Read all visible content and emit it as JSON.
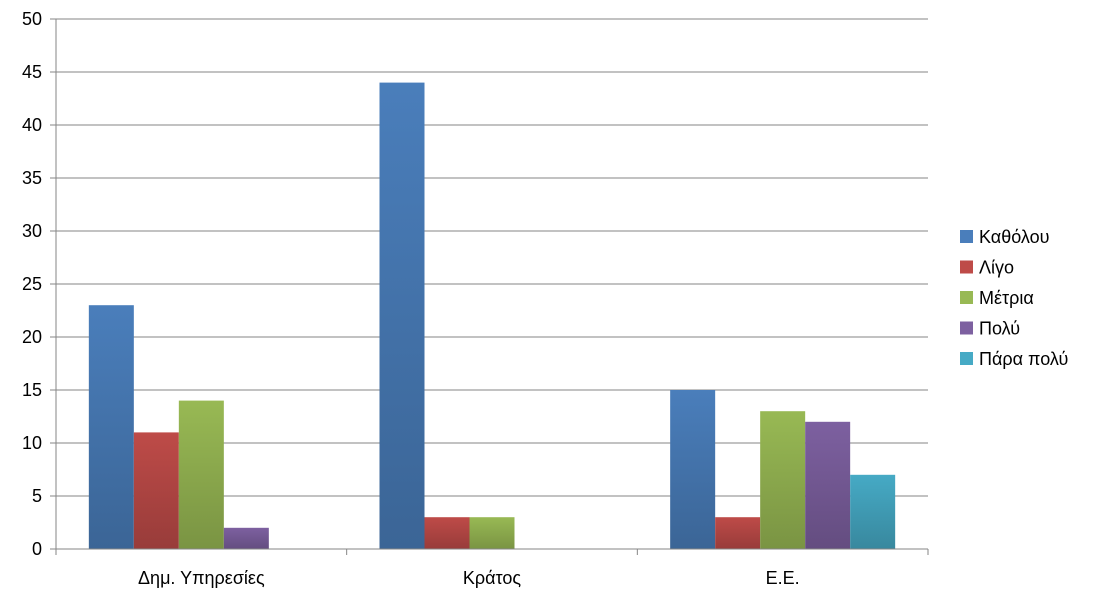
{
  "chart_data": {
    "type": "bar",
    "categories": [
      "Δημ. Υπηρεσίες",
      "Κράτος",
      "Ε.Ε."
    ],
    "series": [
      {
        "name": "Καθόλου",
        "values": [
          23,
          44,
          15
        ],
        "color": "#4A7EBB"
      },
      {
        "name": "Λίγο",
        "values": [
          11,
          3,
          3
        ],
        "color": "#BE4B48"
      },
      {
        "name": "Μέτρια",
        "values": [
          14,
          3,
          13
        ],
        "color": "#98B954"
      },
      {
        "name": "Πολύ",
        "values": [
          2,
          0,
          12
        ],
        "color": "#7D60A0"
      },
      {
        "name": "Πάρα πολύ",
        "values": [
          0,
          0,
          7
        ],
        "color": "#46AAC5"
      }
    ],
    "yticks": [
      "0",
      "5",
      "10",
      "15",
      "20",
      "25",
      "30",
      "35",
      "40",
      "45",
      "50"
    ],
    "ylim": [
      0,
      50
    ],
    "grid": true,
    "legend_position": "right"
  }
}
